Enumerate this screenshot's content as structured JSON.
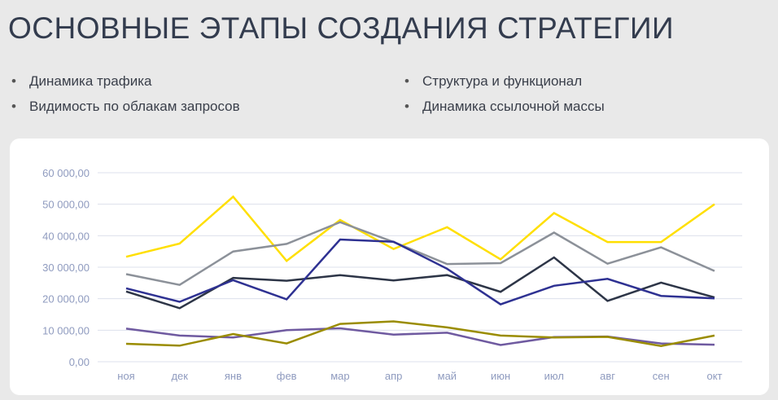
{
  "title": "ОСНОВНЫЕ ЭТАПЫ СОЗДАНИЯ СТРАТЕГИИ",
  "bullets": {
    "left": [
      "Динамика трафика",
      "Видимость по облакам запросов"
    ],
    "right": [
      "Структура и функционал",
      "Динамика ссылочной массы"
    ],
    "dot": "•"
  },
  "chart_data": {
    "type": "line",
    "title": "",
    "xlabel": "",
    "ylabel": "",
    "ylim": [
      0,
      60000
    ],
    "yticks": [
      "0,00",
      "10 000,00",
      "20 000,00",
      "30 000,00",
      "40 000,00",
      "50 000,00",
      "60 000,00"
    ],
    "grid": true,
    "categories": [
      "ноя",
      "дек",
      "янв",
      "фев",
      "мар",
      "апр",
      "май",
      "июн",
      "июл",
      "авг",
      "сен",
      "окт"
    ],
    "series": [
      {
        "name": "series-yellow",
        "color": "#ffdf00",
        "values": [
          33300,
          37500,
          52400,
          32000,
          45000,
          35800,
          42700,
          32500,
          47200,
          38000,
          38000,
          50000
        ]
      },
      {
        "name": "series-gray",
        "color": "#8c9199",
        "values": [
          27800,
          24400,
          35000,
          37400,
          44300,
          38000,
          31000,
          31300,
          41000,
          31100,
          36300,
          28800
        ]
      },
      {
        "name": "series-navy",
        "color": "#2d3547",
        "values": [
          22300,
          17000,
          26600,
          25700,
          27500,
          25800,
          27500,
          22200,
          33100,
          19300,
          25100,
          20400
        ]
      },
      {
        "name": "series-blue",
        "color": "#2e3192",
        "values": [
          23300,
          19000,
          25900,
          19800,
          38800,
          38100,
          29500,
          18200,
          24100,
          26300,
          20900,
          20100
        ]
      },
      {
        "name": "series-purple",
        "color": "#6f5aa0",
        "values": [
          10500,
          8300,
          7700,
          10000,
          10600,
          8600,
          9200,
          5300,
          7800,
          8000,
          5800,
          5400
        ]
      },
      {
        "name": "series-olive",
        "color": "#9a8c00",
        "values": [
          5700,
          5100,
          8800,
          5800,
          12000,
          12800,
          10900,
          8300,
          7700,
          7900,
          5000,
          8300
        ]
      }
    ]
  }
}
